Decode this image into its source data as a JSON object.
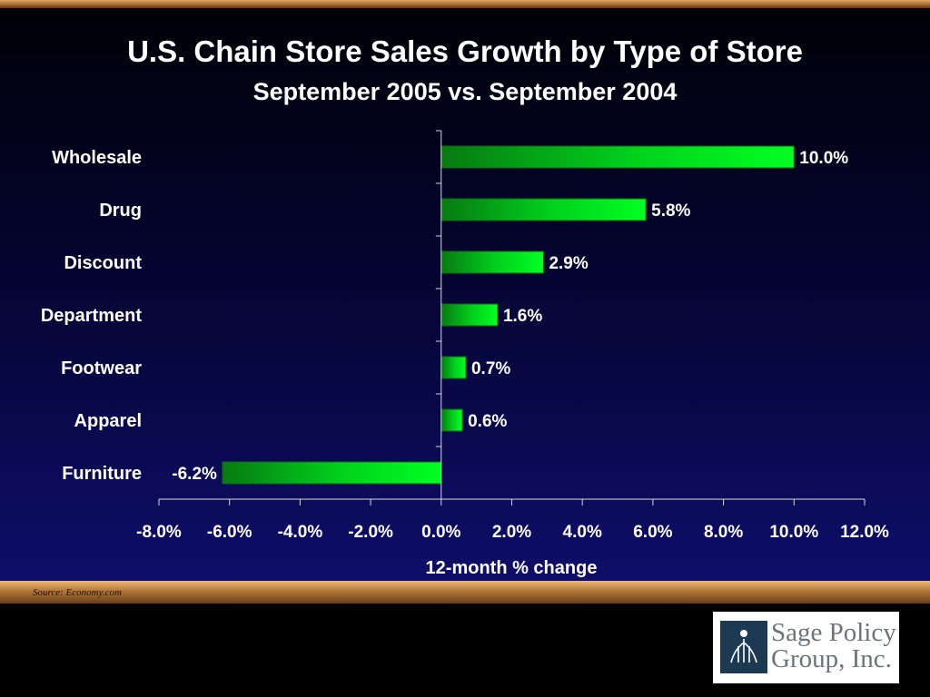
{
  "chart_data": {
    "type": "bar",
    "orientation": "horizontal",
    "title": "U.S. Chain Store Sales Growth by Type of Store",
    "subtitle": "September 2005 vs. September 2004",
    "xlabel": "12-month % change",
    "ylabel": "",
    "categories": [
      "Wholesale",
      "Drug",
      "Discount",
      "Department",
      "Footwear",
      "Apparel",
      "Furniture"
    ],
    "values": [
      10.0,
      5.8,
      2.9,
      1.6,
      0.7,
      0.6,
      -6.2
    ],
    "data_labels": [
      "10.0%",
      "5.8%",
      "2.9%",
      "1.6%",
      "0.7%",
      "0.6%",
      "-6.2%"
    ],
    "xlim": [
      -8.0,
      12.0
    ],
    "x_ticks": [
      -8,
      -6,
      -4,
      -2,
      0,
      2,
      4,
      6,
      8,
      10,
      12
    ],
    "x_tick_labels": [
      "-8.0%",
      "-6.0%",
      "-4.0%",
      "-2.0%",
      "0.0%",
      "2.0%",
      "4.0%",
      "6.0%",
      "8.0%",
      "10.0%",
      "12.0%"
    ],
    "grid": false,
    "legend": "none",
    "bar_color": "#00e020"
  },
  "footer": {
    "source": "Source: Economy.com"
  },
  "logo": {
    "line1": "Sage Policy",
    "line2": "Group, Inc.",
    "icon": "sage-policy-logo-mark"
  },
  "colors": {
    "background_top": "#000007",
    "background_bottom": "#0e0e6a",
    "frame_bronze": "#b37738",
    "text": "#ffffff"
  }
}
